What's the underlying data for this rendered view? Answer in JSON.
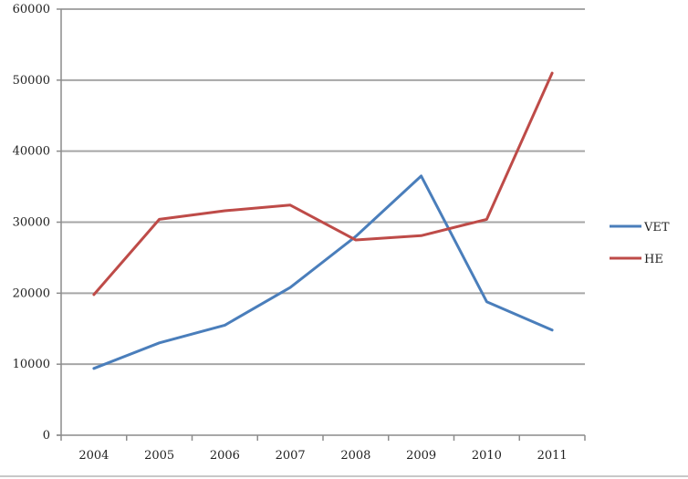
{
  "chart_data": {
    "type": "line",
    "title": "",
    "xlabel": "",
    "ylabel": "",
    "categories": [
      "2004",
      "2005",
      "2006",
      "2007",
      "2008",
      "2009",
      "2010",
      "2011"
    ],
    "ylim": [
      0,
      60000
    ],
    "yticks": [
      "0",
      "10000",
      "20000",
      "30000",
      "40000",
      "50000",
      "60000"
    ],
    "grid": true,
    "legend_position": "right",
    "series": [
      {
        "name": "VET",
        "color": "#4a7ebb",
        "values": [
          9400,
          13000,
          15500,
          20800,
          28000,
          36500,
          18800,
          14800
        ]
      },
      {
        "name": "HE",
        "color": "#be4b48",
        "values": [
          19800,
          30400,
          31600,
          32400,
          27500,
          28100,
          30400,
          51000
        ]
      }
    ]
  }
}
